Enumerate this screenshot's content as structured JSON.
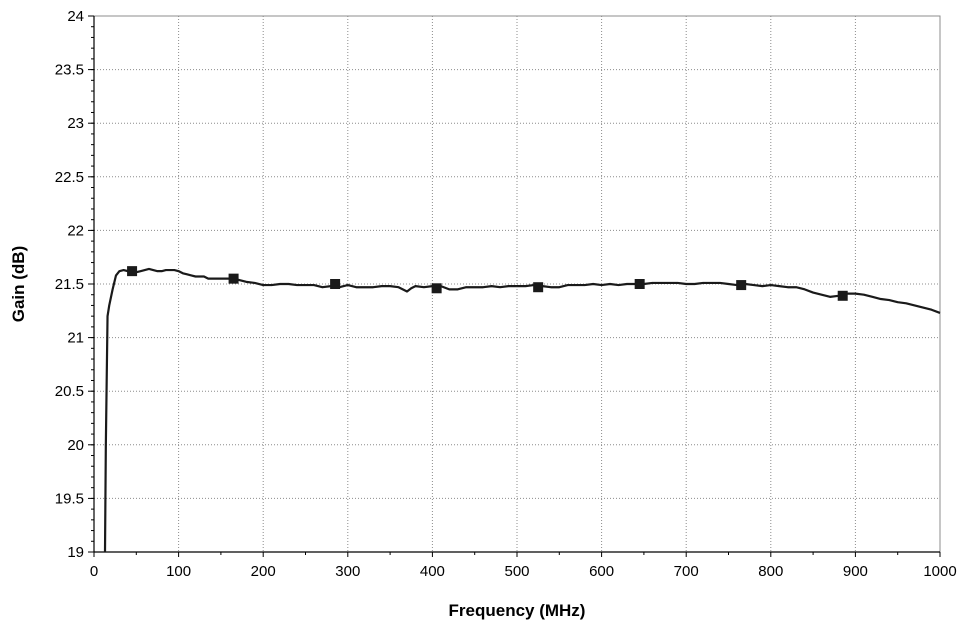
{
  "chart_data": {
    "type": "line",
    "xlabel": "Frequency (MHz)",
    "ylabel": "Gain (dB)",
    "xlim": [
      0,
      1000
    ],
    "ylim": [
      19,
      24
    ],
    "xticks": [
      "0",
      "100",
      "200",
      "300",
      "400",
      "500",
      "600",
      "700",
      "800",
      "900",
      "1000"
    ],
    "yticks": [
      "19",
      "19.5",
      "20",
      "20.5",
      "21",
      "21.5",
      "22",
      "22.5",
      "23",
      "23.5",
      "24"
    ],
    "grid": true,
    "colors": {
      "line": "#1a1a1a",
      "marker": "#1a1a1a",
      "grid": "#8c8c8c"
    },
    "series": [
      {
        "marker": "square",
        "x": [
          13,
          14,
          16,
          18,
          22,
          26,
          30,
          35,
          40,
          45,
          50,
          55,
          60,
          65,
          70,
          75,
          80,
          85,
          90,
          95,
          100,
          105,
          110,
          115,
          120,
          125,
          130,
          135,
          140,
          150,
          160,
          165,
          170,
          180,
          190,
          200,
          210,
          220,
          230,
          240,
          250,
          260,
          270,
          280,
          285,
          290,
          300,
          310,
          320,
          330,
          340,
          350,
          360,
          365,
          370,
          375,
          380,
          390,
          400,
          405,
          410,
          420,
          430,
          440,
          450,
          460,
          470,
          480,
          490,
          500,
          510,
          520,
          525,
          530,
          540,
          550,
          560,
          570,
          580,
          590,
          600,
          610,
          620,
          630,
          640,
          645,
          650,
          660,
          670,
          680,
          690,
          700,
          710,
          720,
          730,
          740,
          750,
          760,
          765,
          770,
          780,
          790,
          800,
          810,
          820,
          830,
          840,
          850,
          860,
          870,
          880,
          885,
          890,
          900,
          910,
          920,
          930,
          940,
          950,
          960,
          970,
          980,
          990,
          1000
        ],
        "y": [
          19.0,
          20.0,
          21.2,
          21.3,
          21.45,
          21.58,
          21.62,
          21.63,
          21.62,
          21.62,
          21.61,
          21.62,
          21.63,
          21.64,
          21.63,
          21.62,
          21.62,
          21.63,
          21.63,
          21.63,
          21.62,
          21.6,
          21.59,
          21.58,
          21.57,
          21.57,
          21.57,
          21.55,
          21.55,
          21.55,
          21.55,
          21.55,
          21.54,
          21.52,
          21.51,
          21.49,
          21.49,
          21.5,
          21.5,
          21.49,
          21.49,
          21.49,
          21.47,
          21.48,
          21.5,
          21.47,
          21.49,
          21.47,
          21.47,
          21.47,
          21.48,
          21.48,
          21.47,
          21.45,
          21.43,
          21.46,
          21.48,
          21.47,
          21.48,
          21.46,
          21.48,
          21.45,
          21.45,
          21.47,
          21.47,
          21.47,
          21.48,
          21.47,
          21.48,
          21.48,
          21.48,
          21.49,
          21.47,
          21.48,
          21.47,
          21.47,
          21.49,
          21.49,
          21.49,
          21.5,
          21.49,
          21.5,
          21.49,
          21.5,
          21.5,
          21.5,
          21.5,
          21.51,
          21.51,
          21.51,
          21.51,
          21.5,
          21.5,
          21.51,
          21.51,
          21.51,
          21.5,
          21.49,
          21.49,
          21.5,
          21.49,
          21.48,
          21.49,
          21.48,
          21.47,
          21.47,
          21.45,
          21.42,
          21.4,
          21.38,
          21.39,
          21.4,
          21.41,
          21.41,
          21.4,
          21.38,
          21.36,
          21.35,
          21.33,
          21.32,
          21.3,
          21.28,
          21.26,
          21.23
        ],
        "markers_x": [
          45,
          165,
          285,
          405,
          525,
          645,
          765,
          885
        ],
        "markers_y": [
          21.62,
          21.55,
          21.5,
          21.46,
          21.47,
          21.5,
          21.49,
          21.39
        ]
      }
    ]
  }
}
